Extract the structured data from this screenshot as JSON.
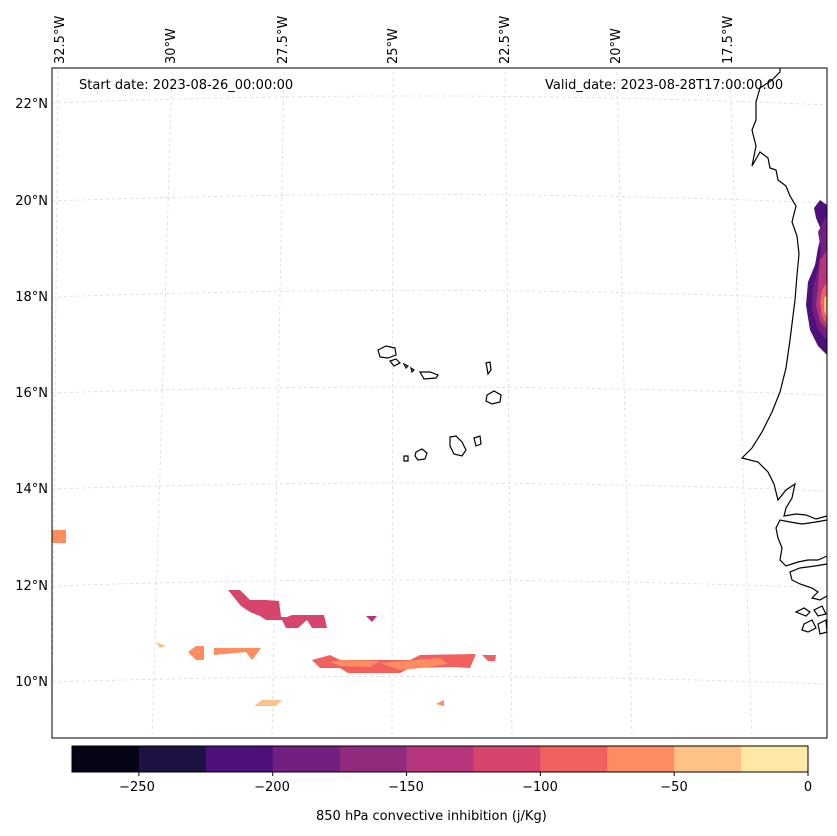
{
  "header": {
    "start_date": "Start date: 2023-08-26_00:00:00",
    "valid_date": "Valid_date: 2023-08-28T17:00:00.00"
  },
  "map": {
    "longitude_labels": [
      "32.5°W",
      "30°W",
      "27.5°W",
      "25°W",
      "22.5°W",
      "20°W",
      "17.5°W"
    ],
    "latitude_labels": [
      "22°N",
      "20°N",
      "18°N",
      "16°N",
      "14°N",
      "12°N",
      "10°N"
    ],
    "features": [
      "Cape Verde islands",
      "West African coastline"
    ]
  },
  "colorbar": {
    "label": "850 hPa convective inhibition (j/Kg)",
    "min": -275,
    "max": 0,
    "step": 25,
    "tick_labels": [
      "−250",
      "−200",
      "−150",
      "−100",
      "−50",
      "0"
    ],
    "colors": [
      "#050416",
      "#1e1242",
      "#4e117b",
      "#721f81",
      "#902a7d",
      "#b5367a",
      "#d8456c",
      "#f1605d",
      "#fd8d61",
      "#fec287",
      "#fde8a5"
    ]
  },
  "colors": {
    "coastline": "#000000",
    "gridline": "#d9d9d9",
    "frame": "#000000"
  }
}
